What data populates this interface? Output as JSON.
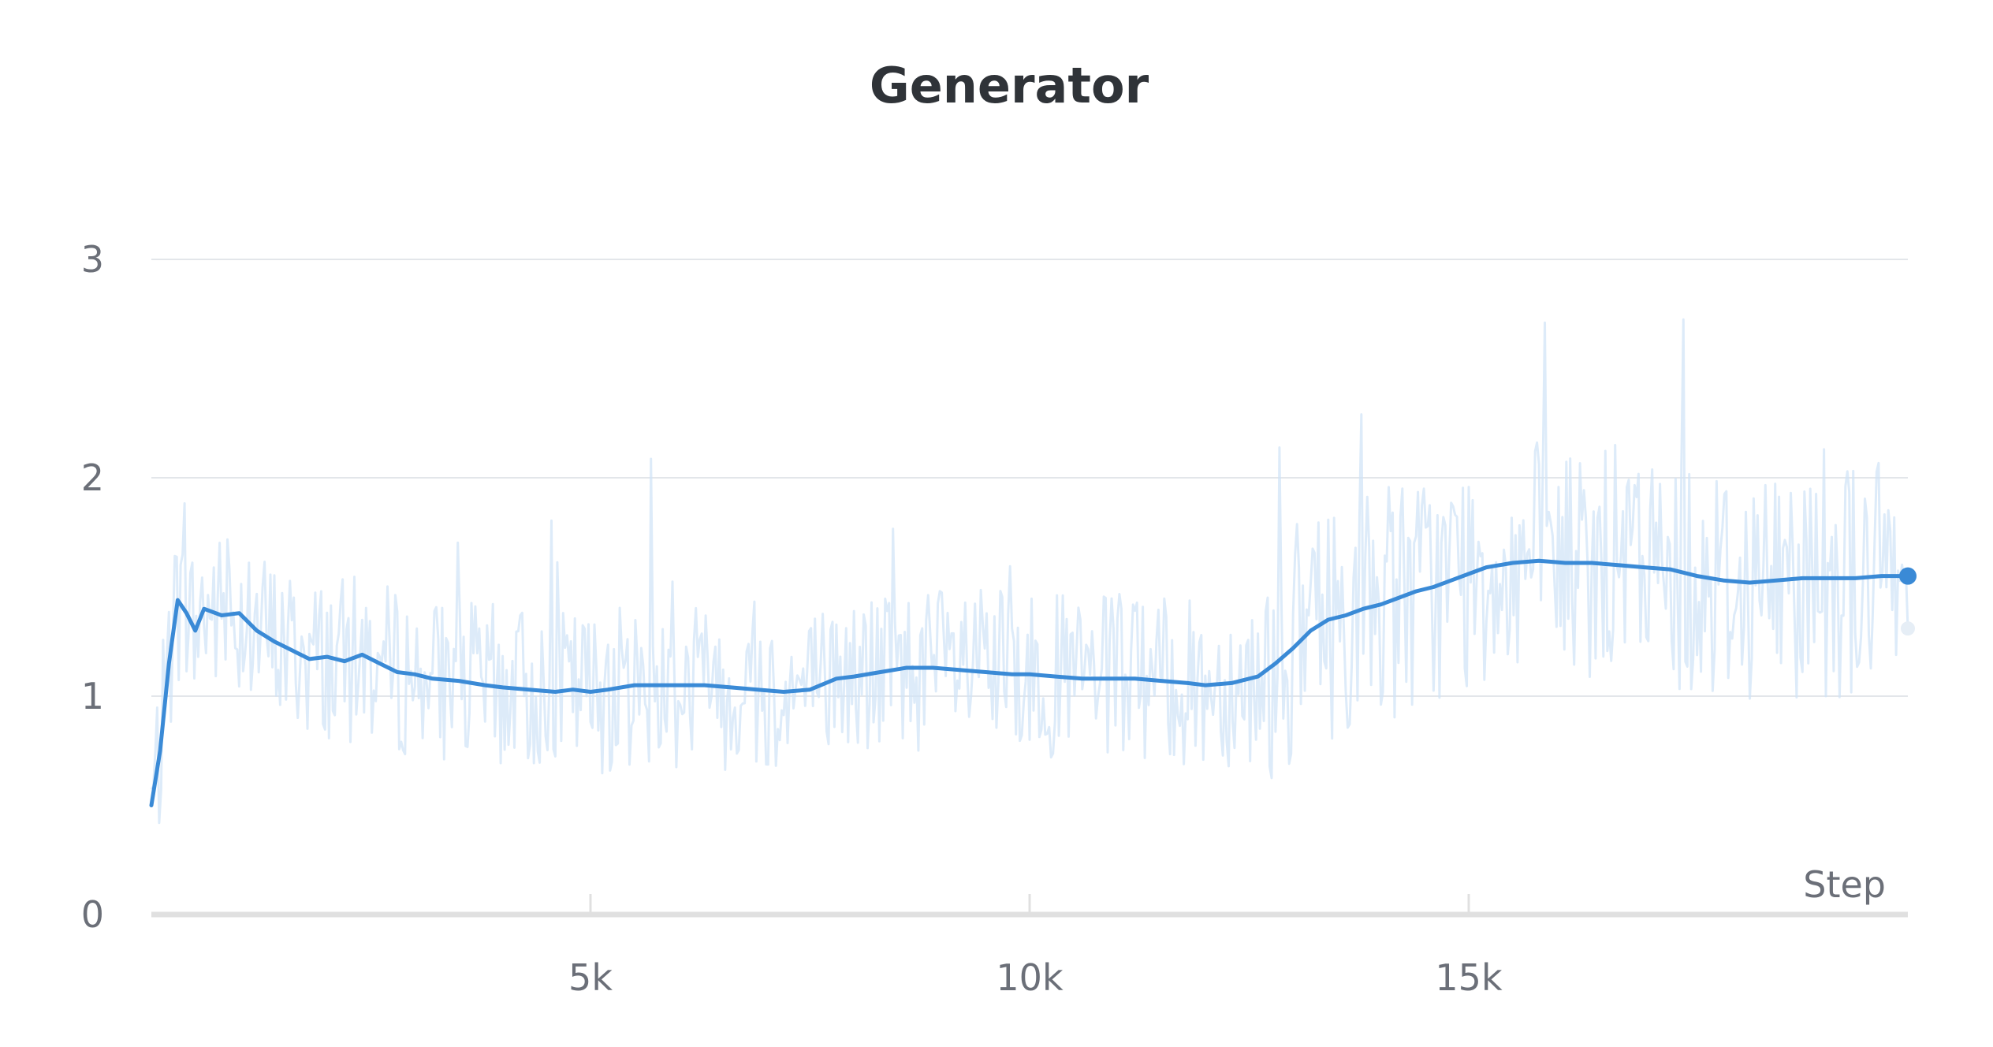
{
  "chart_data": {
    "type": "line",
    "title": "Generator",
    "xlabel": "Step",
    "ylabel": "",
    "xlim": [
      0,
      20000
    ],
    "ylim": [
      0,
      3.5
    ],
    "x_ticks": [
      5000,
      10000,
      15000
    ],
    "x_tick_labels": [
      "5k",
      "10k",
      "15k"
    ],
    "y_ticks": [
      0,
      1,
      2,
      3
    ],
    "y_tick_labels": [
      "0",
      "1",
      "2",
      "3"
    ],
    "grid": true,
    "legend": "none",
    "colors": {
      "smoothed": "#3a8ad6",
      "raw": "#cfe3f7",
      "grid": "#e3e6ea",
      "axis": "#e0e0e0",
      "end_raw_marker": "#e6eef6"
    },
    "series": [
      {
        "role": "smoothed",
        "x": [
          0,
          100,
          200,
          300,
          400,
          500,
          600,
          800,
          1000,
          1200,
          1400,
          1600,
          1800,
          2000,
          2200,
          2400,
          2600,
          2800,
          3000,
          3200,
          3500,
          3800,
          4000,
          4300,
          4600,
          4800,
          5000,
          5200,
          5500,
          5800,
          6000,
          6300,
          6600,
          6900,
          7200,
          7500,
          7800,
          8000,
          8300,
          8600,
          8900,
          9200,
          9500,
          9800,
          10000,
          10300,
          10600,
          10900,
          11200,
          11500,
          11800,
          12000,
          12300,
          12600,
          12800,
          13000,
          13200,
          13400,
          13600,
          13800,
          14000,
          14200,
          14400,
          14600,
          14800,
          15000,
          15200,
          15500,
          15800,
          16100,
          16400,
          16700,
          17000,
          17300,
          17600,
          17900,
          18200,
          18500,
          18800,
          19100,
          19400,
          19700,
          20000
        ],
        "y": [
          0.5,
          0.75,
          1.15,
          1.44,
          1.38,
          1.3,
          1.4,
          1.37,
          1.38,
          1.3,
          1.25,
          1.21,
          1.17,
          1.18,
          1.16,
          1.19,
          1.15,
          1.11,
          1.1,
          1.08,
          1.07,
          1.05,
          1.04,
          1.03,
          1.02,
          1.03,
          1.02,
          1.03,
          1.05,
          1.05,
          1.05,
          1.05,
          1.04,
          1.03,
          1.02,
          1.03,
          1.08,
          1.09,
          1.11,
          1.13,
          1.13,
          1.12,
          1.11,
          1.1,
          1.1,
          1.09,
          1.08,
          1.08,
          1.08,
          1.07,
          1.06,
          1.05,
          1.06,
          1.09,
          1.15,
          1.22,
          1.3,
          1.35,
          1.37,
          1.4,
          1.42,
          1.45,
          1.48,
          1.5,
          1.53,
          1.56,
          1.59,
          1.61,
          1.62,
          1.61,
          1.61,
          1.6,
          1.59,
          1.58,
          1.55,
          1.53,
          1.52,
          1.53,
          1.54,
          1.54,
          1.54,
          1.55,
          1.55
        ]
      }
    ],
    "raw_series_endpoint": {
      "x": 20000,
      "y": 1.31
    }
  }
}
